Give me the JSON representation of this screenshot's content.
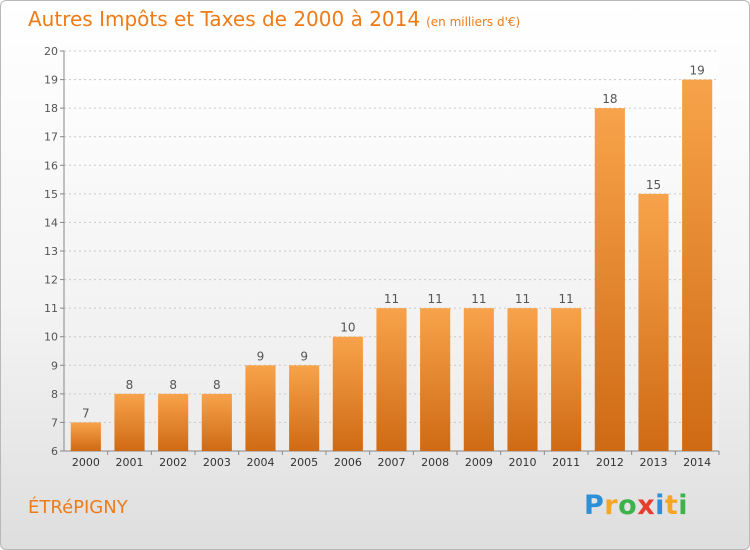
{
  "header": {
    "title": "Autres Impôts et Taxes de 2000 à 2014",
    "subtitle": "(en milliers d'€)"
  },
  "footer": {
    "town": "ÉTRéPIGNY",
    "logo_letters": [
      "P",
      "r",
      "o",
      "x",
      "i",
      "t",
      "i"
    ],
    "logo_colors": [
      "#2d8fd6",
      "#f5a623",
      "#3cb24a",
      "#e63c2e",
      "#2d8fd6",
      "#f5a623",
      "#3cb24a"
    ]
  },
  "chart_data": {
    "type": "bar",
    "title": "Autres Impôts et Taxes de 2000 à 2014",
    "subtitle": "(en milliers d'€)",
    "categories": [
      "2000",
      "2001",
      "2002",
      "2003",
      "2004",
      "2005",
      "2006",
      "2007",
      "2008",
      "2009",
      "2010",
      "2011",
      "2012",
      "2013",
      "2014"
    ],
    "values": [
      7,
      8,
      8,
      8,
      9,
      9,
      10,
      11,
      11,
      11,
      11,
      11,
      18,
      15,
      19
    ],
    "ylim": [
      6,
      20
    ],
    "yticks": [
      6,
      7,
      8,
      9,
      10,
      11,
      12,
      13,
      14,
      15,
      16,
      17,
      18,
      19,
      20
    ],
    "xlabel": "",
    "ylabel": "",
    "grid": true,
    "colors": {
      "bar_light": "#f7a34b",
      "bar_dark": "#cf6a14",
      "label": "#555555",
      "grid": "#c8c8c8",
      "axis": "#888888"
    }
  }
}
